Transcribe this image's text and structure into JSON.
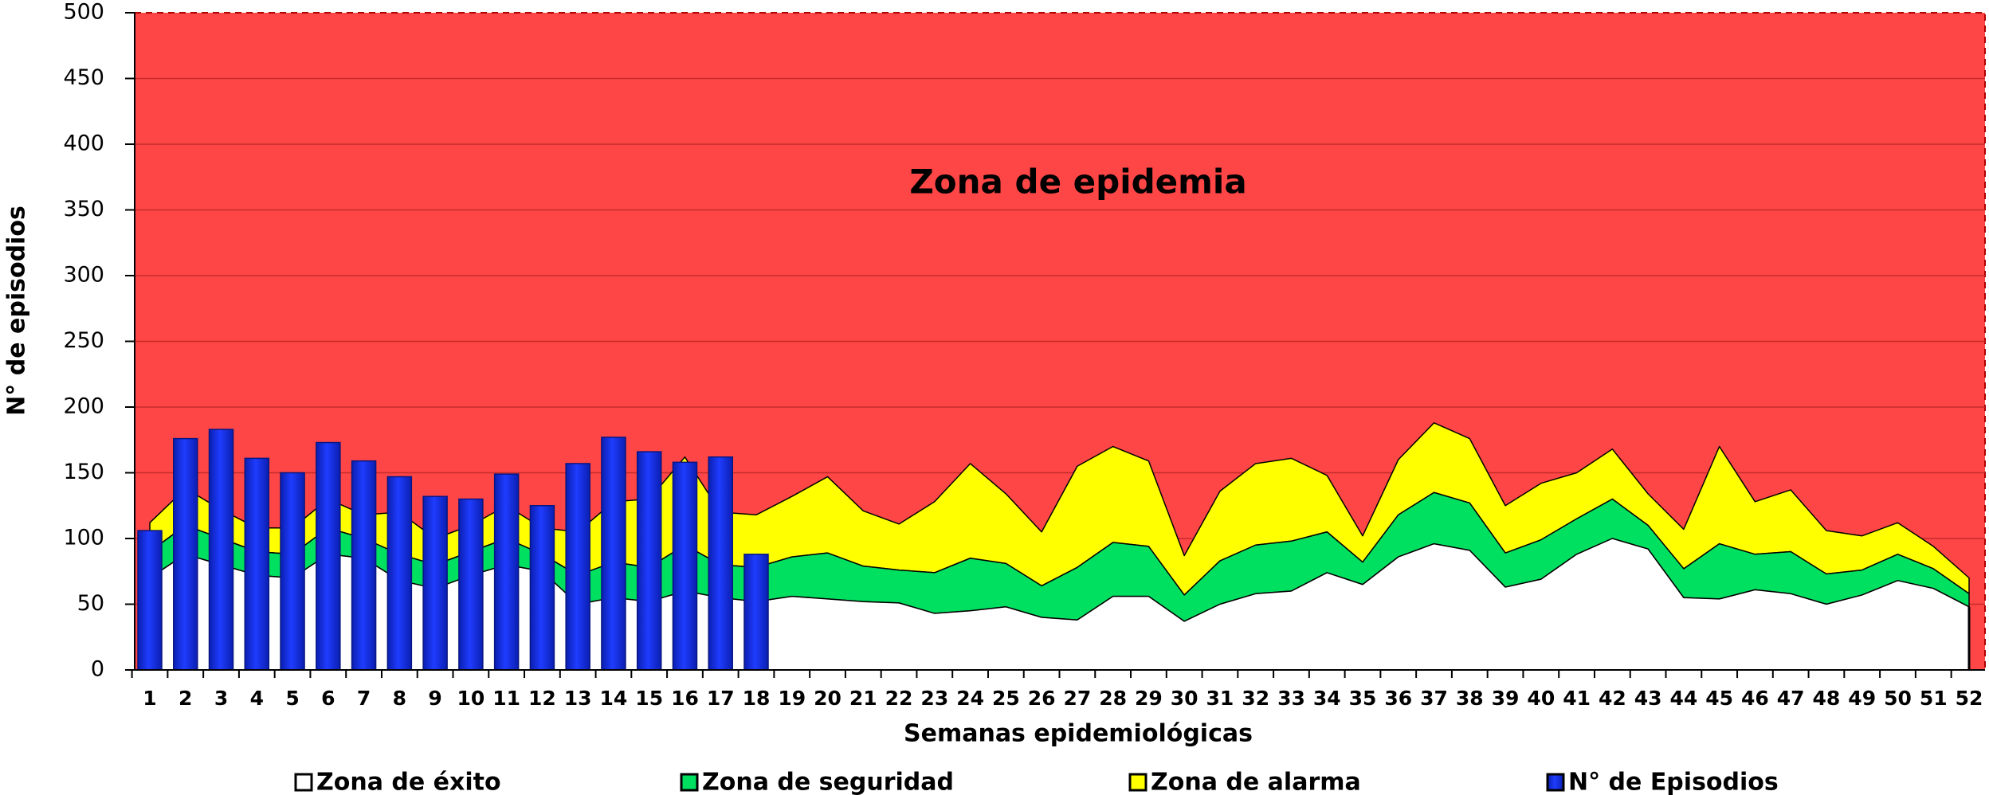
{
  "chart_data": {
    "type": "area",
    "annotation": "Zona de epidemia",
    "x_label": "Semanas epidemiológicas",
    "y_label": "N° de episodios",
    "plot_color": "#ff4646",
    "grid_color": "#c42b2b",
    "categories": [
      "1",
      "2",
      "3",
      "4",
      "5",
      "6",
      "7",
      "8",
      "9",
      "10",
      "11",
      "12",
      "13",
      "14",
      "15",
      "16",
      "17",
      "18",
      "19",
      "20",
      "21",
      "22",
      "23",
      "24",
      "25",
      "26",
      "27",
      "28",
      "29",
      "30",
      "31",
      "32",
      "33",
      "34",
      "35",
      "36",
      "37",
      "38",
      "39",
      "40",
      "41",
      "42",
      "43",
      "44",
      "45",
      "46",
      "47",
      "48",
      "49",
      "50",
      "51",
      "52"
    ],
    "ylim": [
      0,
      500
    ],
    "yticks": [
      0,
      50,
      100,
      150,
      200,
      250,
      300,
      350,
      400,
      450,
      500
    ],
    "grid": true,
    "series": [
      {
        "name": "Zona de éxito",
        "color": "#ffffff",
        "values": [
          70,
          88,
          80,
          72,
          70,
          88,
          85,
          68,
          62,
          72,
          80,
          75,
          50,
          55,
          52,
          60,
          55,
          52,
          56,
          54,
          52,
          51,
          43,
          45,
          48,
          40,
          38,
          56,
          56,
          37,
          50,
          58,
          60,
          74,
          65,
          86,
          96,
          91,
          63,
          69,
          88,
          100,
          92,
          55,
          54,
          61,
          58,
          50,
          57,
          68,
          62,
          48
        ]
      },
      {
        "name": "Zona de seguridad",
        "color": "#00e060",
        "values": [
          20,
          22,
          20,
          18,
          18,
          20,
          15,
          20,
          18,
          18,
          20,
          13,
          22,
          27,
          26,
          35,
          25,
          26,
          30,
          35,
          27,
          25,
          31,
          40,
          33,
          24,
          40,
          41,
          38,
          20,
          33,
          37,
          38,
          31,
          17,
          32,
          39,
          36,
          26,
          30,
          27,
          30,
          18,
          22,
          42,
          27,
          32,
          23,
          19,
          20,
          15,
          10
        ]
      },
      {
        "name": "Zona de alarma",
        "color": "#ffff00",
        "values": [
          22,
          28,
          22,
          18,
          20,
          22,
          18,
          32,
          20,
          20,
          25,
          20,
          33,
          46,
          52,
          67,
          40,
          40,
          46,
          58,
          42,
          35,
          54,
          72,
          53,
          41,
          77,
          73,
          65,
          30,
          53,
          62,
          63,
          43,
          20,
          42,
          53,
          49,
          36,
          43,
          35,
          38,
          24,
          30,
          74,
          40,
          47,
          33,
          26,
          24,
          17,
          12
        ]
      },
      {
        "name": "N° de Episodios",
        "color": "#1f3cff",
        "type": "bar",
        "values": [
          106,
          176,
          183,
          161,
          150,
          173,
          159,
          147,
          132,
          130,
          149,
          125,
          157,
          177,
          166,
          158,
          162,
          88,
          null,
          null,
          null,
          null,
          null,
          null,
          null,
          null,
          null,
          null,
          null,
          null,
          null,
          null,
          null,
          null,
          null,
          null,
          null,
          null,
          null,
          null,
          null,
          null,
          null,
          null,
          null,
          null,
          null,
          null,
          null,
          null,
          null,
          null
        ]
      }
    ]
  }
}
